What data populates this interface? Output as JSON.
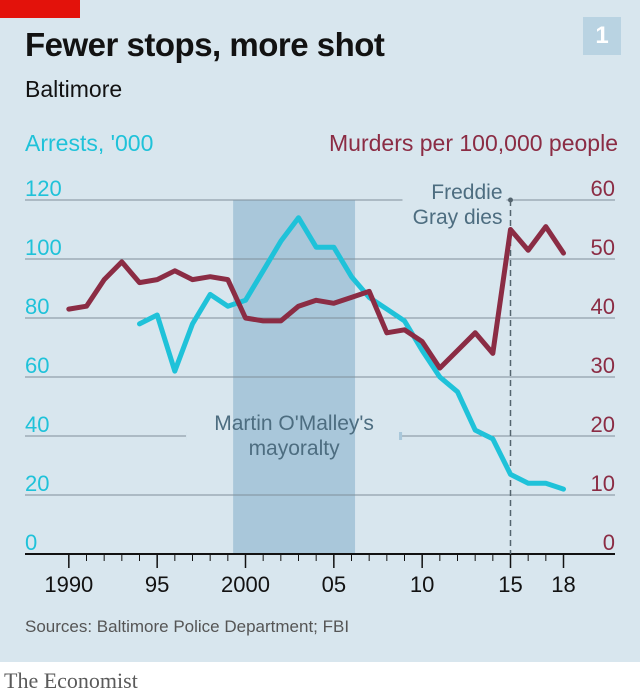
{
  "header": {
    "title": "Fewer stops, more shot",
    "subtitle": "Baltimore",
    "chart_number": "1",
    "brand_color": "#e3120b"
  },
  "chart_data": {
    "type": "line",
    "title": "Fewer stops, more shot",
    "subtitle": "Baltimore",
    "left_axis": {
      "label": "Arrests, '000",
      "ylim": [
        0,
        120
      ],
      "ticks": [
        0,
        20,
        40,
        60,
        80,
        100,
        120
      ],
      "color": "#1fc2d9"
    },
    "right_axis": {
      "label": "Murders per 100,000 people",
      "ylim": [
        0,
        60
      ],
      "ticks": [
        0,
        10,
        20,
        30,
        40,
        50,
        60
      ],
      "color": "#8b2c44"
    },
    "x_axis": {
      "tick_labels": [
        "1990",
        "95",
        "2000",
        "05",
        "10",
        "15",
        "18"
      ],
      "tick_values": [
        1990,
        1995,
        2000,
        2005,
        2010,
        2015,
        2018
      ],
      "xlim": [
        1989.5,
        2019.5
      ]
    },
    "grid": true,
    "series": [
      {
        "name": "Arrests, '000",
        "axis": "left",
        "color": "#1fc2d9",
        "x": [
          1994,
          1995,
          1996,
          1997,
          1998,
          1999,
          2000,
          2001,
          2002,
          2003,
          2004,
          2005,
          2006,
          2007,
          2008,
          2009,
          2010,
          2011,
          2012,
          2013,
          2014,
          2015,
          2016,
          2017,
          2018
        ],
        "values": [
          78,
          81,
          62,
          78,
          88,
          84,
          86,
          96,
          106,
          114,
          104,
          104,
          94,
          87,
          83,
          79,
          69,
          60,
          55,
          42,
          39,
          27,
          24,
          24,
          22
        ]
      },
      {
        "name": "Murders per 100,000 people",
        "axis": "right",
        "color": "#8b2c44",
        "x": [
          1990,
          1991,
          1992,
          1993,
          1994,
          1995,
          1996,
          1997,
          1998,
          1999,
          2000,
          2001,
          2002,
          2003,
          2004,
          2005,
          2006,
          2007,
          2008,
          2009,
          2010,
          2011,
          2012,
          2013,
          2014,
          2015,
          2016,
          2017,
          2018
        ],
        "values": [
          41.5,
          42,
          46.5,
          49.5,
          46,
          46.5,
          48,
          46.5,
          47,
          46.5,
          40,
          39.5,
          39.5,
          42,
          43,
          42.5,
          43.5,
          44.5,
          37.5,
          38,
          36,
          31.5,
          34.5,
          37.5,
          34,
          55,
          51.5,
          55.5,
          51
        ]
      }
    ],
    "annotations": [
      {
        "id": "omalley",
        "text_lines": [
          "Martin O'Malley's",
          "mayoralty"
        ],
        "x_start": 1999.3,
        "x_end": 2006.2
      },
      {
        "id": "gray",
        "text_lines": [
          "Freddie",
          "Gray dies"
        ],
        "x": 2015
      }
    ]
  },
  "source": "Sources: Baltimore Police Department; FBI",
  "footer": {
    "brand": "The Economist"
  }
}
